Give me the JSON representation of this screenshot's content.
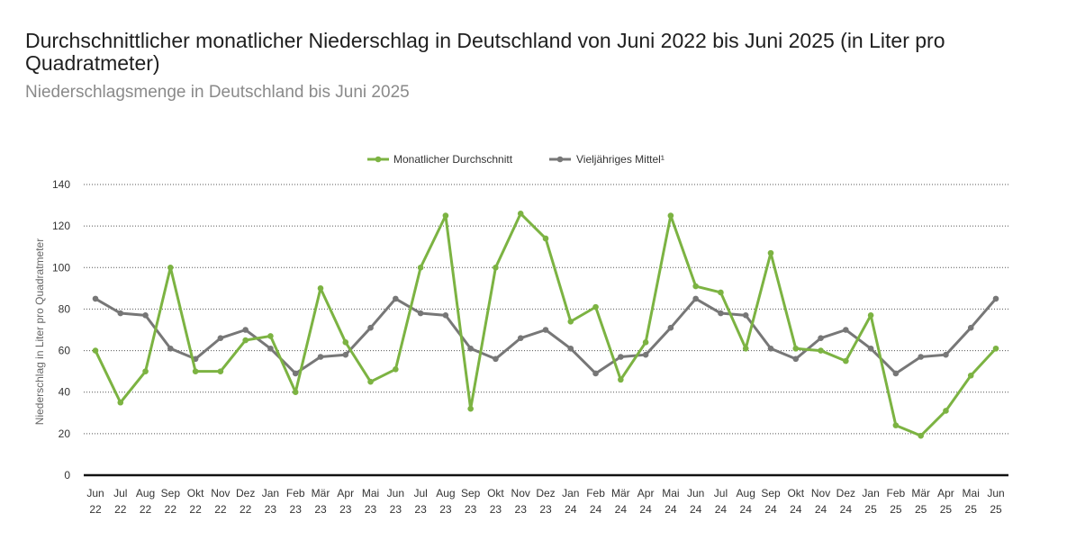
{
  "header": {
    "title": "Durchschnittlicher monatlicher Niederschlag in Deutschland von Juni 2022 bis Juni 2025 (in Liter pro Quadratmeter)",
    "subtitle": "Niederschlagsmenge in Deutschland bis Juni 2025"
  },
  "chart_data": {
    "type": "line",
    "ylabel": "Niederschlag in Liter pro Quadratmeter",
    "ylim": [
      0,
      140
    ],
    "yticks": [
      0,
      20,
      40,
      60,
      80,
      100,
      120,
      140
    ],
    "grid": "horizontal dotted",
    "legend": "top-center",
    "categories": [
      [
        "Jun",
        "22"
      ],
      [
        "Jul",
        "22"
      ],
      [
        "Aug",
        "22"
      ],
      [
        "Sep",
        "22"
      ],
      [
        "Okt",
        "22"
      ],
      [
        "Nov",
        "22"
      ],
      [
        "Dez",
        "22"
      ],
      [
        "Jan",
        "23"
      ],
      [
        "Feb",
        "23"
      ],
      [
        "Mär",
        "23"
      ],
      [
        "Apr",
        "23"
      ],
      [
        "Mai",
        "23"
      ],
      [
        "Jun",
        "23"
      ],
      [
        "Jul",
        "23"
      ],
      [
        "Aug",
        "23"
      ],
      [
        "Sep",
        "23"
      ],
      [
        "Okt",
        "23"
      ],
      [
        "Nov",
        "23"
      ],
      [
        "Dez",
        "23"
      ],
      [
        "Jan",
        "24"
      ],
      [
        "Feb",
        "24"
      ],
      [
        "Mär",
        "24"
      ],
      [
        "Apr",
        "24"
      ],
      [
        "Mai",
        "24"
      ],
      [
        "Jun",
        "24"
      ],
      [
        "Jul",
        "24"
      ],
      [
        "Aug",
        "24"
      ],
      [
        "Sep",
        "24"
      ],
      [
        "Okt",
        "24"
      ],
      [
        "Nov",
        "24"
      ],
      [
        "Dez",
        "24"
      ],
      [
        "Jan",
        "25"
      ],
      [
        "Feb",
        "25"
      ],
      [
        "Mär",
        "25"
      ],
      [
        "Apr",
        "25"
      ],
      [
        "Mai",
        "25"
      ],
      [
        "Jun",
        "25"
      ]
    ],
    "series": [
      {
        "name": "Monatlicher Durchschnitt",
        "color": "#7cb342",
        "values": [
          60,
          35,
          50,
          100,
          50,
          50,
          65,
          67,
          40,
          90,
          64,
          45,
          51,
          100,
          125,
          32,
          100,
          126,
          114,
          74,
          81,
          46,
          64,
          125,
          91,
          88,
          61,
          107,
          61,
          60,
          55,
          77,
          24,
          19,
          31,
          48,
          61
        ]
      },
      {
        "name": "Vieljähriges Mittel¹",
        "color": "#777777",
        "values": [
          85,
          78,
          77,
          61,
          56,
          66,
          70,
          61,
          49,
          57,
          58,
          71,
          85,
          78,
          77,
          61,
          56,
          66,
          70,
          61,
          49,
          57,
          58,
          71,
          85,
          78,
          77,
          61,
          56,
          66,
          70,
          61,
          49,
          57,
          58,
          71,
          85
        ]
      }
    ]
  }
}
